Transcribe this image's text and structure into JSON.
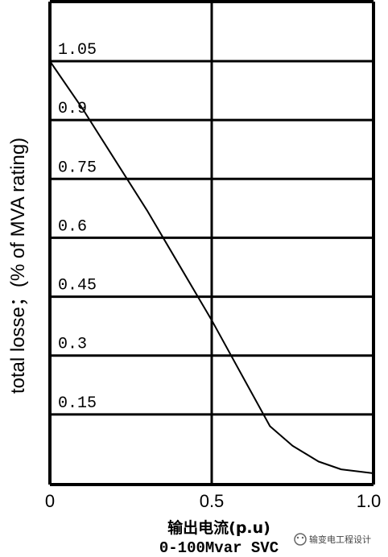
{
  "chart_data": {
    "type": "line",
    "ylabel": "total losse；(% of MVA rating)",
    "xlabel": "输出电流(p.u)",
    "caption": "0-100Mvar SVC",
    "xlim": [
      0,
      1.0
    ],
    "ylim": [
      -0.05,
      1.1
    ],
    "x_ticks": [
      "0",
      "0.5",
      "1.0"
    ],
    "y_ticks": [
      {
        "value": 1.05,
        "label": "1.05"
      },
      {
        "value": 0.9,
        "label": "0.9"
      },
      {
        "value": 0.75,
        "label": "0.75"
      },
      {
        "value": 0.6,
        "label": "0.6"
      },
      {
        "value": 0.45,
        "label": "0.45"
      },
      {
        "value": 0.3,
        "label": "0.3"
      },
      {
        "value": 0.15,
        "label": "0.15"
      }
    ],
    "grid": true,
    "series": [
      {
        "x": [
          0,
          0.1,
          0.2,
          0.3,
          0.4,
          0.5,
          0.6,
          0.68,
          0.75,
          0.83,
          0.9,
          1.0
        ],
        "y": [
          1.05,
          0.93,
          0.8,
          0.67,
          0.53,
          0.39,
          0.24,
          0.12,
          0.07,
          0.03,
          0.01,
          0.0
        ]
      }
    ]
  },
  "watermark": "输变电工程设计",
  "watermark_icon": "wechat-icon"
}
